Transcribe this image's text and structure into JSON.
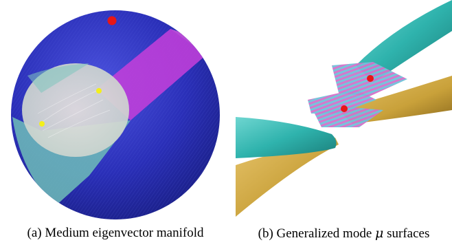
{
  "figure": {
    "panels": [
      {
        "id": "a",
        "caption_prefix": "(a) Medium eigenvector manifold",
        "colors": {
          "sphere": "#2a2fb8",
          "magenta_region": "#c23fd9",
          "teal_region": "#6fbdb8",
          "disk": "#d9d3cf",
          "red_point": "#e81616",
          "yellow_point": "#f3ef1b"
        }
      },
      {
        "id": "b",
        "caption_prefix": "(b) Generalized mode ",
        "caption_symbol": "μ",
        "caption_suffix": " surfaces",
        "colors": {
          "teal_surface": "#2fb3ad",
          "gold_surface": "#c9a13a",
          "red_point": "#e81616"
        }
      }
    ]
  }
}
